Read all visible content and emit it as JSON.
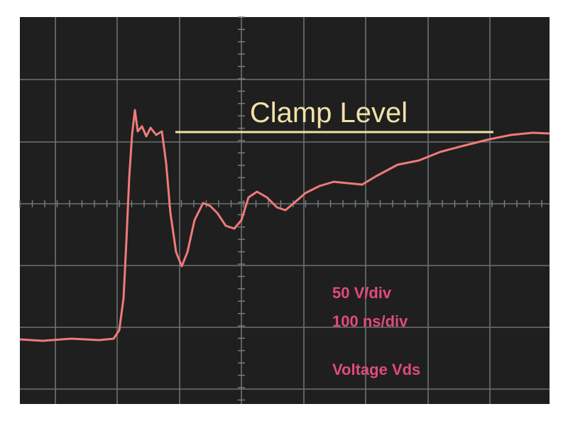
{
  "annotation": "Clamp Level",
  "settings": [
    "50 V/div",
    "100 ns/div"
  ],
  "label": "Voltage Vds"
}
